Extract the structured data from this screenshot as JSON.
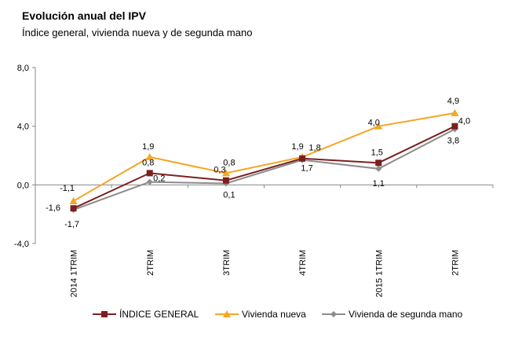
{
  "chart_data": {
    "type": "line",
    "title": "Evolución anual del IPV",
    "subtitle": "Índice general, vivienda nueva y de segunda mano",
    "categories": [
      "2014 1TRIM",
      "2TRIM",
      "3TRIM",
      "4TRIM",
      "2015 1TRIM",
      "2TRIM"
    ],
    "ylim": [
      -4,
      8
    ],
    "yticks": [
      "-4,0",
      "0,0",
      "4,0",
      "8,0"
    ],
    "ytick_values": [
      -4,
      0,
      4,
      8
    ],
    "grid": false,
    "legend_position": "bottom",
    "series": [
      {
        "name": "ÍNDICE GENERAL",
        "color": "#7b1f1f",
        "marker": "square",
        "values": [
          -1.6,
          0.8,
          0.3,
          1.8,
          1.5,
          4.0
        ],
        "labels": [
          "-1,6",
          "0,8",
          "0,3",
          "1,8",
          "1,5",
          "4,0"
        ]
      },
      {
        "name": "Vivienda nueva",
        "color": "#f5a623",
        "marker": "triangle",
        "values": [
          -1.1,
          1.9,
          0.8,
          1.9,
          4.0,
          4.9
        ],
        "labels": [
          "-1,1",
          "1,9",
          "0,8",
          "1,9",
          "4,0",
          "4,9"
        ]
      },
      {
        "name": "Vivienda de segunda mano",
        "color": "#8c8c8c",
        "marker": "diamond",
        "values": [
          -1.7,
          0.2,
          0.1,
          1.7,
          1.1,
          3.8
        ],
        "labels": [
          "-1,7",
          "0,2",
          "0,1",
          "1,7",
          "1,1",
          "3,8"
        ]
      }
    ]
  }
}
